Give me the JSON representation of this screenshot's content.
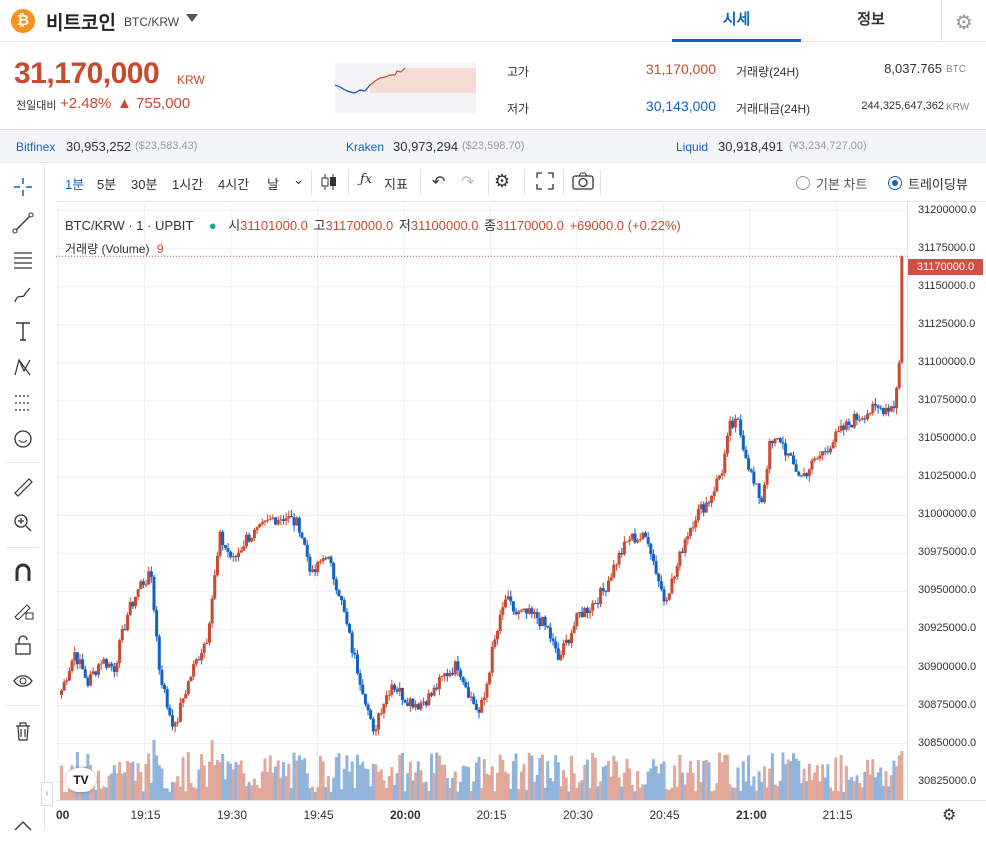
{
  "header": {
    "coin_logo": "₿",
    "coin_name": "비트코인",
    "pair": "BTC/KRW",
    "tabs": [
      {
        "label": "시세",
        "active": true
      },
      {
        "label": "정보",
        "active": false
      }
    ],
    "accent": "#1261c4"
  },
  "price": {
    "current": "31,170,000",
    "unit": "KRW",
    "change_label": "전일대비",
    "change_pct": "+2.48%",
    "change_amt": "▲ 755,000",
    "high_label": "고가",
    "high": "31,170,000",
    "low_label": "저가",
    "low": "30,143,000",
    "vol_label": "거래량(24H)",
    "vol": "8,037.765",
    "vol_unit": "BTC",
    "amt_label": "거래대금(24H)",
    "amt": "244,325,647,362",
    "amt_unit": "KRW",
    "up_color": "#c84a31",
    "down_color": "#1261c4"
  },
  "exchanges": [
    {
      "name": "Bitfinex",
      "price": "30,953,252",
      "sub": "($23,583.43)"
    },
    {
      "name": "Kraken",
      "price": "30,973,294",
      "sub": "($23,598.70)"
    },
    {
      "name": "Liquid",
      "price": "30,918,491",
      "sub": "(¥3,234,727.00)"
    }
  ],
  "toolbar": {
    "intervals": [
      "1분",
      "5분",
      "30분",
      "1시간",
      "4시간",
      "날"
    ],
    "active_interval": "1분",
    "indicator_label": "지표",
    "basic_chart": "기본 차트",
    "tradingview": "트레이딩뷰"
  },
  "left_tools": [
    "crosshair-icon",
    "trend-line-icon",
    "fib-icon",
    "brush-icon",
    "text-icon",
    "pattern-icon",
    "forecast-icon",
    "emoji-icon",
    "ruler-icon",
    "zoom-in-icon",
    "magnet-icon",
    "lock-drawing-icon",
    "unlock-icon",
    "eye-icon",
    "trash-icon"
  ],
  "legend": {
    "symbol": "BTC/KRW · 1 · UPBIT",
    "o_label": "시",
    "o": "31101000.0",
    "h_label": "고",
    "h": "31170000.0",
    "l_label": "저",
    "l": "31100000.0",
    "c_label": "종",
    "c": "31170000.0",
    "chg": "+69000.0 (+0.22%)",
    "volume_label": "거래량 (Volume)",
    "volume_value": "9"
  },
  "last_price_tag": "31170000.0",
  "tv_logo": "TV",
  "chart_data": {
    "type": "candlestick",
    "y_ticks": [
      31200000,
      31175000,
      31150000,
      31125000,
      31100000,
      31075000,
      31050000,
      31025000,
      31000000,
      30975000,
      30950000,
      30925000,
      30900000,
      30875000,
      30850000,
      30825000
    ],
    "y_tick_labels": [
      "31200000.0",
      "31175000.0",
      "31150000.0",
      "31125000.0",
      "31100000.0",
      "31075000.0",
      "31050000.0",
      "31025000.0",
      "31000000.0",
      "30975000.0",
      "30950000.0",
      "30925000.0",
      "30900000.0",
      "30875000.0",
      "30850000.0",
      "30825000.0"
    ],
    "ylim": [
      30813000,
      31205000
    ],
    "x_labels": [
      "00",
      "19:15",
      "19:30",
      "19:45",
      "20:00",
      "20:15",
      "20:30",
      "20:45",
      "21:00",
      "21:15"
    ],
    "last_price": 31170000,
    "up_color": "#c84a31",
    "down_color": "#1261c4",
    "anchors": [
      [
        0,
        30885000
      ],
      [
        5,
        30910000
      ],
      [
        10,
        30890000
      ],
      [
        15,
        30905000
      ],
      [
        20,
        30900000
      ],
      [
        25,
        30935000
      ],
      [
        30,
        30955000
      ],
      [
        34,
        30960000
      ],
      [
        37,
        30900000
      ],
      [
        40,
        30875000
      ],
      [
        43,
        30860000
      ],
      [
        46,
        30880000
      ],
      [
        50,
        30900000
      ],
      [
        55,
        30920000
      ],
      [
        60,
        30985000
      ],
      [
        65,
        30970000
      ],
      [
        70,
        30985000
      ],
      [
        75,
        30990000
      ],
      [
        80,
        30998000
      ],
      [
        85,
        30999000
      ],
      [
        90,
        30993000
      ],
      [
        95,
        30960000
      ],
      [
        100,
        30975000
      ],
      [
        105,
        30950000
      ],
      [
        110,
        30912000
      ],
      [
        115,
        30880000
      ],
      [
        118,
        30855000
      ],
      [
        120,
        30870000
      ],
      [
        125,
        30890000
      ],
      [
        130,
        30880000
      ],
      [
        135,
        30876000
      ],
      [
        140,
        30882000
      ],
      [
        145,
        30895000
      ],
      [
        150,
        30902000
      ],
      [
        155,
        30880000
      ],
      [
        158,
        30870000
      ],
      [
        160,
        30880000
      ],
      [
        163,
        30910000
      ],
      [
        168,
        30945000
      ],
      [
        172,
        30935000
      ],
      [
        176,
        30935000
      ],
      [
        180,
        30933000
      ],
      [
        184,
        30925000
      ],
      [
        188,
        30905000
      ],
      [
        192,
        30920000
      ],
      [
        196,
        30935000
      ],
      [
        200,
        30940000
      ],
      [
        205,
        30950000
      ],
      [
        210,
        30970000
      ],
      [
        215,
        30985000
      ],
      [
        220,
        30985000
      ],
      [
        222,
        30985000
      ],
      [
        224,
        30970000
      ],
      [
        228,
        30945000
      ],
      [
        232,
        30960000
      ],
      [
        236,
        30985000
      ],
      [
        240,
        31000000
      ],
      [
        245,
        31010000
      ],
      [
        250,
        31030000
      ],
      [
        253,
        31058000
      ],
      [
        256,
        31060000
      ],
      [
        259,
        31040000
      ],
      [
        262,
        31020000
      ],
      [
        265,
        31010000
      ],
      [
        268,
        31045000
      ],
      [
        272,
        31050000
      ],
      [
        276,
        31035000
      ],
      [
        280,
        31025000
      ],
      [
        285,
        31035000
      ],
      [
        290,
        31045000
      ],
      [
        295,
        31055000
      ],
      [
        300,
        31063000
      ],
      [
        305,
        31068000
      ],
      [
        310,
        31070000
      ],
      [
        315,
        31072000
      ],
      [
        317,
        31100000
      ],
      [
        318,
        31168000
      ]
    ],
    "n_candles": 319,
    "volume_scale_max": 60
  }
}
